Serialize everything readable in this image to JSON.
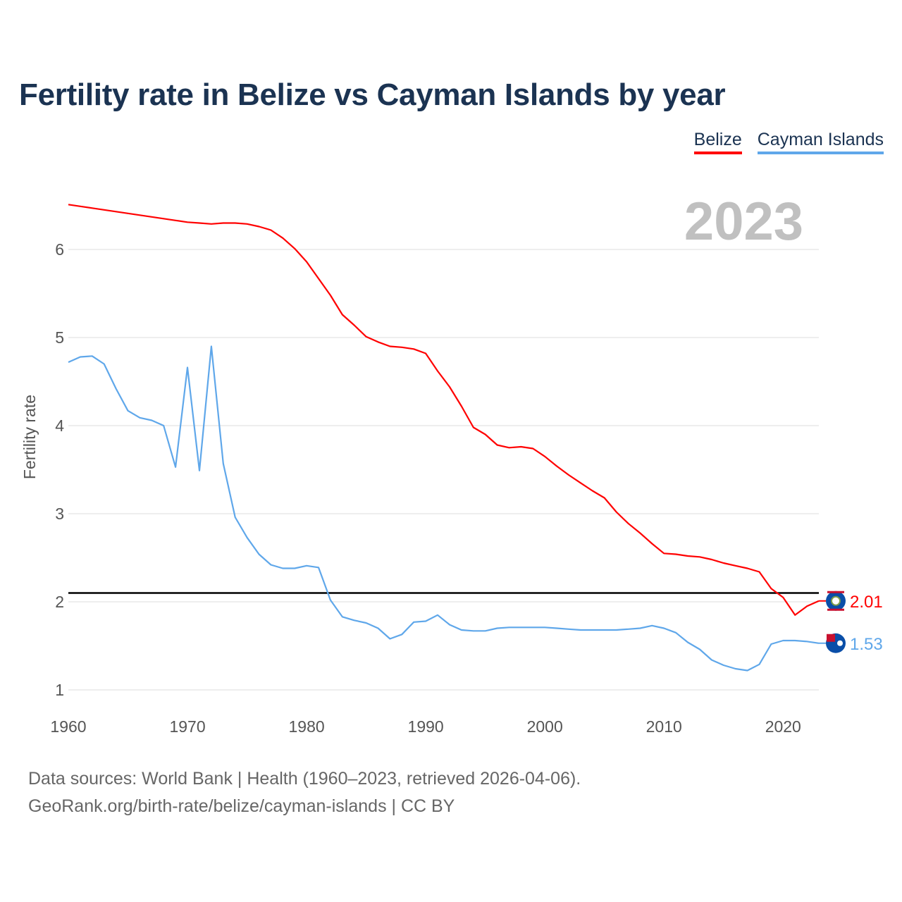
{
  "title": "Fertility rate in Belize vs Cayman Islands by year",
  "legend": [
    {
      "label": "Belize",
      "color": "#ff0000"
    },
    {
      "label": "Cayman Islands",
      "color": "#5fa7ea"
    }
  ],
  "footer": {
    "line1": "Data sources: World Bank | Health (1960–2023, retrieved 2026-04-06).",
    "line2": "GeoRank.org/birth-rate/belize/cayman-islands | CC BY"
  },
  "chart_data": {
    "type": "line",
    "title": "Fertility rate in Belize vs Cayman Islands by year",
    "xlabel": "",
    "ylabel": "Fertility rate",
    "xlim": [
      1960,
      2023
    ],
    "ylim": [
      0.7,
      6.8
    ],
    "x_ticks": [
      "1960",
      "1970",
      "1980",
      "1990",
      "2000",
      "2010",
      "2020"
    ],
    "y_ticks": [
      "1",
      "2",
      "3",
      "4",
      "5",
      "6"
    ],
    "grid": true,
    "legend_position": "top-right",
    "current_year_label": "2023",
    "reference_line": {
      "value": 2.1,
      "color": "#000000"
    },
    "x": [
      1960,
      1961,
      1962,
      1963,
      1964,
      1965,
      1966,
      1967,
      1968,
      1969,
      1970,
      1971,
      1972,
      1973,
      1974,
      1975,
      1976,
      1977,
      1978,
      1979,
      1980,
      1981,
      1982,
      1983,
      1984,
      1985,
      1986,
      1987,
      1988,
      1989,
      1990,
      1991,
      1992,
      1993,
      1994,
      1995,
      1996,
      1997,
      1998,
      1999,
      2000,
      2001,
      2002,
      2003,
      2004,
      2005,
      2006,
      2007,
      2008,
      2009,
      2010,
      2011,
      2012,
      2013,
      2014,
      2015,
      2016,
      2017,
      2018,
      2019,
      2020,
      2021,
      2022,
      2023
    ],
    "series": [
      {
        "name": "Belize",
        "color": "#ff0000",
        "end_label": "2.01",
        "values": [
          6.51,
          6.49,
          6.47,
          6.45,
          6.43,
          6.41,
          6.39,
          6.37,
          6.35,
          6.33,
          6.31,
          6.3,
          6.29,
          6.3,
          6.3,
          6.29,
          6.26,
          6.22,
          6.13,
          6.01,
          5.86,
          5.67,
          5.48,
          5.26,
          5.14,
          5.01,
          4.95,
          4.9,
          4.89,
          4.87,
          4.82,
          4.62,
          4.44,
          4.22,
          3.98,
          3.9,
          3.78,
          3.75,
          3.76,
          3.74,
          3.65,
          3.54,
          3.44,
          3.35,
          3.26,
          3.18,
          3.02,
          2.89,
          2.78,
          2.66,
          2.55,
          2.54,
          2.52,
          2.51,
          2.48,
          2.44,
          2.41,
          2.38,
          2.34,
          2.15,
          2.05,
          1.85,
          1.95,
          2.01
        ]
      },
      {
        "name": "Cayman Islands",
        "color": "#5fa7ea",
        "end_label": "1.53",
        "values": [
          4.72,
          4.78,
          4.79,
          4.7,
          4.42,
          4.17,
          4.09,
          4.06,
          4.0,
          3.53,
          4.66,
          3.49,
          4.9,
          3.57,
          2.96,
          2.73,
          2.54,
          2.42,
          2.38,
          2.38,
          2.41,
          2.39,
          2.02,
          1.83,
          1.79,
          1.76,
          1.7,
          1.58,
          1.63,
          1.77,
          1.78,
          1.85,
          1.74,
          1.68,
          1.67,
          1.67,
          1.7,
          1.71,
          1.71,
          1.71,
          1.71,
          1.7,
          1.69,
          1.68,
          1.68,
          1.68,
          1.68,
          1.69,
          1.7,
          1.73,
          1.7,
          1.65,
          1.54,
          1.46,
          1.34,
          1.28,
          1.24,
          1.22,
          1.29,
          1.52,
          1.56,
          1.56,
          1.55,
          1.53
        ]
      }
    ]
  }
}
